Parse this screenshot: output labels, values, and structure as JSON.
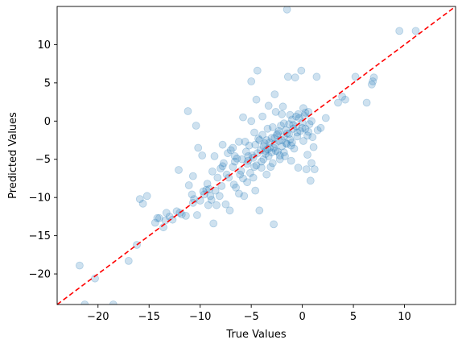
{
  "chart_data": {
    "type": "scatter",
    "title": "",
    "xlabel": "True Values",
    "ylabel": "Predicted Values",
    "xlim": [
      -24,
      15
    ],
    "ylim": [
      -24,
      15
    ],
    "xticks": [
      -20,
      -15,
      -10,
      -5,
      0,
      5,
      10
    ],
    "yticks": [
      -20,
      -15,
      -10,
      -5,
      0,
      5,
      10
    ],
    "x_tick_labels": [
      "−20",
      "−15",
      "−10",
      "−5",
      "0",
      "5",
      "10"
    ],
    "y_tick_labels": [
      "−20",
      "−15",
      "−10",
      "−5",
      "0",
      "5",
      "10"
    ],
    "grid": false,
    "reference_line": {
      "style": "dashed",
      "color": "#ff0000",
      "from": [
        -24,
        -24
      ],
      "to": [
        15,
        15
      ]
    },
    "colors": {
      "points": "#1f77b4",
      "reference_line": "#ff0000"
    },
    "point_alpha": 0.22,
    "points": [
      [
        -21.8,
        -18.9
      ],
      [
        -21.3,
        -24.0
      ],
      [
        -20.3,
        -20.6
      ],
      [
        -18.5,
        -24.0
      ],
      [
        -17.0,
        -18.3
      ],
      [
        -16.2,
        -16.2
      ],
      [
        -15.9,
        -10.2
      ],
      [
        -15.6,
        -10.8
      ],
      [
        -15.2,
        -9.8
      ],
      [
        -14.4,
        -13.3
      ],
      [
        -14.2,
        -12.7
      ],
      [
        -14.0,
        -12.7
      ],
      [
        -13.6,
        -13.9
      ],
      [
        -13.3,
        -12.0
      ],
      [
        -13.0,
        -12.5
      ],
      [
        -12.7,
        -12.9
      ],
      [
        -12.3,
        -11.8
      ],
      [
        -12.1,
        -6.4
      ],
      [
        -11.8,
        -12.2
      ],
      [
        -11.4,
        -12.4
      ],
      [
        -11.2,
        1.3
      ],
      [
        -11.1,
        -8.4
      ],
      [
        -10.8,
        -9.6
      ],
      [
        -10.7,
        -7.2
      ],
      [
        -10.6,
        -10.2
      ],
      [
        -10.4,
        -0.6
      ],
      [
        -10.3,
        -12.3
      ],
      [
        -10.2,
        -3.5
      ],
      [
        -10.0,
        -10.4
      ],
      [
        -9.8,
        -4.5
      ],
      [
        -9.7,
        -9.2
      ],
      [
        -9.4,
        -9.0
      ],
      [
        -9.3,
        -8.2
      ],
      [
        -9.2,
        -11.0
      ],
      [
        -9.0,
        -9.8
      ],
      [
        -8.9,
        -10.3
      ],
      [
        -8.7,
        -13.4
      ],
      [
        -8.6,
        -4.6
      ],
      [
        -8.4,
        -11.0
      ],
      [
        -8.3,
        -7.4
      ],
      [
        -8.1,
        -9.8
      ],
      [
        -8.0,
        -6.2
      ],
      [
        -7.8,
        -3.1
      ],
      [
        -7.7,
        -5.5
      ],
      [
        -7.5,
        -10.9
      ],
      [
        -7.4,
        -7.0
      ],
      [
        -7.3,
        -4.2
      ],
      [
        -7.1,
        -11.7
      ],
      [
        -7.0,
        -3.8
      ],
      [
        -6.8,
        -6.0
      ],
      [
        -6.7,
        -8.3
      ],
      [
        -6.6,
        -4.6
      ],
      [
        -6.4,
        -4.9
      ],
      [
        -6.2,
        -9.5
      ],
      [
        -6.1,
        -7.0
      ],
      [
        -5.9,
        -5.0
      ],
      [
        -5.8,
        0.5
      ],
      [
        -5.7,
        -9.8
      ],
      [
        -5.6,
        -2.7
      ],
      [
        -5.5,
        -4.0
      ],
      [
        -5.4,
        -8.0
      ],
      [
        -5.3,
        -5.2
      ],
      [
        -5.2,
        -3.2
      ],
      [
        -5.1,
        -6.8
      ],
      [
        -5.0,
        5.2
      ],
      [
        -4.9,
        -4.5
      ],
      [
        -4.8,
        -7.4
      ],
      [
        -4.7,
        -1.5
      ],
      [
        -4.6,
        -9.1
      ],
      [
        -4.5,
        -5.8
      ],
      [
        -4.4,
        6.6
      ],
      [
        -4.3,
        -2.3
      ],
      [
        -4.2,
        -11.7
      ],
      [
        -4.1,
        -3.8
      ],
      [
        -4.0,
        -6.1
      ],
      [
        -3.9,
        0.6
      ],
      [
        -3.8,
        -5.0
      ],
      [
        -3.7,
        -2.9
      ],
      [
        -3.6,
        -4.3
      ],
      [
        -3.5,
        -7.0
      ],
      [
        -3.4,
        -1.0
      ],
      [
        -3.3,
        -4.6
      ],
      [
        -3.2,
        -3.5
      ],
      [
        -3.1,
        -6.0
      ],
      [
        -3.0,
        -2.2
      ],
      [
        -2.9,
        -5.5
      ],
      [
        -2.8,
        -13.5
      ],
      [
        -2.7,
        -3.0
      ],
      [
        -2.6,
        1.2
      ],
      [
        -2.5,
        -1.8
      ],
      [
        -2.4,
        -4.0
      ],
      [
        -2.3,
        -2.6
      ],
      [
        -2.2,
        -5.0
      ],
      [
        -2.1,
        -0.6
      ],
      [
        -2.0,
        -3.3
      ],
      [
        -1.9,
        1.9
      ],
      [
        -1.8,
        -2.0
      ],
      [
        -1.7,
        -4.6
      ],
      [
        -1.6,
        -1.2
      ],
      [
        -1.5,
        -3.0
      ],
      [
        -1.4,
        5.8
      ],
      [
        -1.3,
        -0.4
      ],
      [
        -1.2,
        -2.4
      ],
      [
        -1.1,
        -5.2
      ],
      [
        -1.0,
        0.2
      ],
      [
        -0.9,
        -1.0
      ],
      [
        -0.8,
        -3.6
      ],
      [
        -0.7,
        5.7
      ],
      [
        -0.6,
        -0.7
      ],
      [
        -0.5,
        -2.0
      ],
      [
        -0.4,
        -6.1
      ],
      [
        -0.3,
        0.4
      ],
      [
        -0.2,
        -1.3
      ],
      [
        -0.1,
        6.6
      ],
      [
        0.0,
        -0.2
      ],
      [
        0.1,
        -2.6
      ],
      [
        0.2,
        0.7
      ],
      [
        0.3,
        -1.0
      ],
      [
        0.4,
        -6.3
      ],
      [
        0.5,
        -4.4
      ],
      [
        0.6,
        1.2
      ],
      [
        0.7,
        -0.4
      ],
      [
        0.8,
        -7.8
      ],
      [
        0.9,
        -5.5
      ],
      [
        1.0,
        -2.1
      ],
      [
        1.2,
        -6.3
      ],
      [
        1.4,
        5.8
      ],
      [
        1.5,
        -1.2
      ],
      [
        1.8,
        -0.9
      ],
      [
        2.3,
        0.4
      ],
      [
        3.5,
        2.4
      ],
      [
        3.9,
        3.2
      ],
      [
        4.2,
        2.8
      ],
      [
        5.2,
        5.8
      ],
      [
        6.3,
        2.4
      ],
      [
        6.8,
        4.8
      ],
      [
        6.9,
        5.2
      ],
      [
        7.0,
        5.7
      ],
      [
        9.5,
        11.8
      ],
      [
        11.1,
        11.8
      ],
      [
        -1.5,
        14.6
      ],
      [
        -2.7,
        3.5
      ],
      [
        -3.3,
        2.0
      ],
      [
        -4.5,
        2.8
      ],
      [
        -5.0,
        0.0
      ],
      [
        -6.2,
        -2.7
      ],
      [
        -7.8,
        -5.9
      ],
      [
        -8.8,
        -6.6
      ],
      [
        -9.6,
        -9.6
      ],
      [
        -10.7,
        -10.7
      ],
      [
        -12.0,
        -12.0
      ],
      [
        -13.4,
        -13.0
      ],
      [
        -6.8,
        -3.5
      ],
      [
        -5.3,
        -4.6
      ],
      [
        -4.6,
        -3.1
      ],
      [
        -3.9,
        -1.8
      ],
      [
        -3.5,
        -2.5
      ],
      [
        -2.9,
        -0.8
      ],
      [
        -2.3,
        -1.3
      ],
      [
        -1.8,
        -0.3
      ],
      [
        -1.3,
        -1.7
      ],
      [
        -0.9,
        -0.5
      ],
      [
        -0.4,
        0.9
      ],
      [
        0.1,
        1.7
      ],
      [
        -4.4,
        -4.2
      ],
      [
        -3.8,
        -3.3
      ],
      [
        -3.2,
        -2.8
      ],
      [
        -2.6,
        -3.9
      ],
      [
        -2.0,
        -2.5
      ],
      [
        -1.5,
        -1.6
      ],
      [
        -1.0,
        -2.8
      ],
      [
        -0.5,
        -1.5
      ],
      [
        0.0,
        -0.9
      ],
      [
        0.5,
        -1.9
      ],
      [
        -1.8,
        -4.1
      ],
      [
        -2.4,
        -1.6
      ],
      [
        -3.0,
        -4.1
      ],
      [
        -3.6,
        -3.9
      ],
      [
        -4.2,
        -2.5
      ],
      [
        -4.8,
        -4.8
      ],
      [
        -5.4,
        -5.6
      ],
      [
        -6.0,
        -6.5
      ],
      [
        -6.6,
        -5.3
      ],
      [
        -7.2,
        -7.4
      ],
      [
        -7.9,
        -8.5
      ],
      [
        -8.5,
        -9.1
      ],
      [
        -9.1,
        -8.9
      ],
      [
        -1.2,
        0.8
      ],
      [
        -0.6,
        0.6
      ],
      [
        0.3,
        1.1
      ],
      [
        0.9,
        0.0
      ],
      [
        -2.0,
        0.9
      ],
      [
        -2.7,
        -2.2
      ],
      [
        -3.4,
        -3.7
      ],
      [
        -4.0,
        -5.3
      ],
      [
        -4.7,
        -6.0
      ],
      [
        -5.8,
        -7.5
      ],
      [
        -6.5,
        -8.7
      ],
      [
        0.6,
        -1.4
      ],
      [
        1.1,
        -3.4
      ],
      [
        -1.1,
        -3.2
      ],
      [
        -1.6,
        -2.9
      ],
      [
        -2.2,
        -4.5
      ],
      [
        -2.8,
        -3.5
      ]
    ]
  }
}
